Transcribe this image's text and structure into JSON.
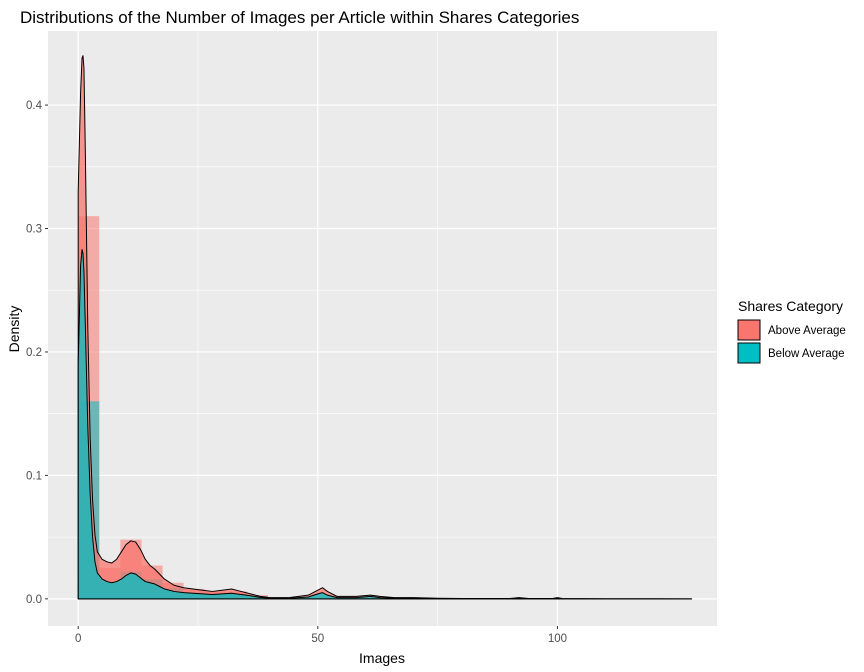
{
  "chart_data": {
    "type": "area",
    "title": "Distributions of the Number of Images per Article within Shares Categories",
    "xlabel": "Images",
    "ylabel": "Density",
    "xlim": [
      -6.3,
      133.3
    ],
    "ylim": [
      -0.022,
      0.46
    ],
    "x_ticks": [
      0,
      50,
      100
    ],
    "y_ticks": [
      0.0,
      0.1,
      0.2,
      0.3,
      0.4
    ],
    "grid": true,
    "legend": {
      "title": "Shares Category",
      "position": "right",
      "entries": [
        {
          "label": "Above Average",
          "color": "#F8766D"
        },
        {
          "label": "Below Average",
          "color": "#00BFC4"
        }
      ]
    },
    "histogram": {
      "bin_width": 4.4,
      "bins": [
        {
          "x0": 0,
          "x1": 4.4,
          "above": 0.31,
          "below": 0.16
        },
        {
          "x0": 4.4,
          "x1": 8.8,
          "above": 0.025,
          "below": 0.013
        },
        {
          "x0": 8.8,
          "x1": 13.2,
          "above": 0.048,
          "below": 0.022
        },
        {
          "x0": 13.2,
          "x1": 17.6,
          "above": 0.027,
          "below": 0.016
        },
        {
          "x0": 17.6,
          "x1": 22.0,
          "above": 0.013,
          "below": 0.009
        },
        {
          "x0": 22.0,
          "x1": 26.4,
          "above": 0.008,
          "below": 0.005
        },
        {
          "x0": 26.4,
          "x1": 30.8,
          "above": 0.006,
          "below": 0.004
        },
        {
          "x0": 30.8,
          "x1": 35.2,
          "above": 0.006,
          "below": 0.004
        },
        {
          "x0": 35.2,
          "x1": 39.6,
          "above": 0.003,
          "below": 0.002
        }
      ]
    },
    "series": [
      {
        "name": "Above Average",
        "color": "#F8766D",
        "x": [
          0,
          0.5,
          0.8,
          1.0,
          1.2,
          1.5,
          2.0,
          2.5,
          3.0,
          3.5,
          4.0,
          5.0,
          6.0,
          7.0,
          8.0,
          9.0,
          10.0,
          11.0,
          12.0,
          13.0,
          14.0,
          15.0,
          16.0,
          17.0,
          18.0,
          20.0,
          22.0,
          24.0,
          26.0,
          28.0,
          30.0,
          32.0,
          34.0,
          36.0,
          38.0,
          40.0,
          44.0,
          48.0,
          50.0,
          51.0,
          52.0,
          54.0,
          58.0,
          61.0,
          63.0,
          66.0,
          70.0,
          75.0,
          80.0,
          90.0,
          92.0,
          94.0,
          99.0,
          100.0,
          101.0,
          110.0,
          120.0,
          128.0
        ],
        "y": [
          0.33,
          0.41,
          0.438,
          0.44,
          0.43,
          0.36,
          0.22,
          0.13,
          0.08,
          0.052,
          0.038,
          0.032,
          0.03,
          0.029,
          0.032,
          0.038,
          0.044,
          0.047,
          0.046,
          0.04,
          0.032,
          0.027,
          0.024,
          0.02,
          0.016,
          0.011,
          0.009,
          0.008,
          0.007,
          0.006,
          0.007,
          0.008,
          0.006,
          0.004,
          0.002,
          0.001,
          0.001,
          0.003,
          0.007,
          0.009,
          0.006,
          0.002,
          0.002,
          0.003,
          0.002,
          0.001,
          0.001,
          0.0005,
          0.0003,
          0.0003,
          0.001,
          0.0003,
          0.0003,
          0.001,
          0.0003,
          0.0001,
          0.0001,
          0.0
        ]
      },
      {
        "name": "Below Average",
        "color": "#00BFC4",
        "x": [
          0,
          0.5,
          0.8,
          1.0,
          1.2,
          1.5,
          2.0,
          2.5,
          3.0,
          3.5,
          4.0,
          5.0,
          6.0,
          7.0,
          8.0,
          9.0,
          10.0,
          11.0,
          12.0,
          13.0,
          14.0,
          15.0,
          16.0,
          17.0,
          18.0,
          20.0,
          22.0,
          24.0,
          26.0,
          28.0,
          30.0,
          32.0,
          34.0,
          36.0,
          38.0,
          40.0,
          44.0,
          48.0,
          50.0,
          51.0,
          52.0,
          54.0,
          58.0,
          61.0,
          63.0,
          66.0,
          70.0,
          75.0,
          80.0,
          90.0,
          92.0,
          94.0,
          99.0,
          100.0,
          101.0,
          110.0,
          120.0,
          128.0
        ],
        "y": [
          0.19,
          0.27,
          0.283,
          0.28,
          0.265,
          0.22,
          0.14,
          0.085,
          0.05,
          0.03,
          0.021,
          0.016,
          0.014,
          0.013,
          0.014,
          0.016,
          0.019,
          0.021,
          0.02,
          0.017,
          0.014,
          0.013,
          0.012,
          0.01,
          0.008,
          0.006,
          0.005,
          0.0045,
          0.004,
          0.0035,
          0.004,
          0.0045,
          0.0035,
          0.0025,
          0.0012,
          0.0006,
          0.0005,
          0.0015,
          0.004,
          0.005,
          0.003,
          0.001,
          0.001,
          0.002,
          0.001,
          0.0005,
          0.0005,
          0.0002,
          0.0001,
          0.0001,
          0.0005,
          0.0001,
          0.0001,
          0.0005,
          0.0001,
          0.0,
          0.0,
          0.0
        ]
      }
    ]
  }
}
